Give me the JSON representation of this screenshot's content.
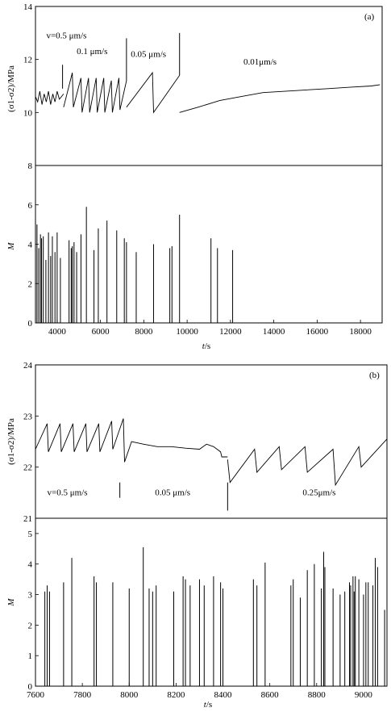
{
  "chart_data": [
    {
      "panel": "(a)",
      "type": "line",
      "x_range": [
        3000,
        19000
      ],
      "x_ticks": [
        4000,
        6000,
        8000,
        10000,
        12000,
        14000,
        16000,
        18000
      ],
      "xlabel_italic": "t",
      "xlabel_unit": "/s",
      "stress": {
        "ylabel": "(σ1-σ2)/MPa",
        "ylim": [
          8,
          14
        ],
        "y_ticks": [
          8,
          10,
          12,
          14
        ],
        "annotations": [
          {
            "text": "v=0.5 μm/s",
            "x": 3500,
            "y": 12.8
          },
          {
            "text": "0.1 μm/s",
            "x": 4900,
            "y": 12.2
          },
          {
            "text": "0.05 μm/s",
            "x": 7400,
            "y": 12.1
          },
          {
            "text": "0.01μm/s",
            "x": 12600,
            "y": 11.8
          }
        ],
        "velocity_markers": [
          4250,
          7200,
          9650
        ],
        "series": [
          {
            "x": [
              3000,
              3100,
              3200,
              3300,
              3400,
              3500,
              3600,
              3700,
              3800,
              3900,
              4000,
              4100,
              4200,
              4300
            ],
            "y": [
              10.6,
              10.4,
              10.8,
              10.3,
              10.7,
              10.4,
              10.8,
              10.3,
              10.7,
              10.4,
              10.8,
              10.5,
              10.6,
              10.7
            ]
          },
          {
            "x": [
              4300,
              4700,
              4750,
              5100,
              5150,
              5450,
              5500,
              5800,
              5850,
              6150,
              6200,
              6500,
              6550,
              6850,
              6900,
              7200
            ],
            "y": [
              10.2,
              11.5,
              10.2,
              11.3,
              10.0,
              11.3,
              10.0,
              11.3,
              10.0,
              11.3,
              10.0,
              11.2,
              10.0,
              11.3,
              10.1,
              11.2
            ]
          },
          {
            "x": [
              7200,
              8400,
              8450,
              9650
            ],
            "y": [
              10.2,
              11.5,
              10.0,
              11.4
            ]
          },
          {
            "x": [
              9650,
              10500,
              11500,
              12500,
              13500,
              14500,
              15500,
              16500,
              17500,
              18500,
              18900
            ],
            "y": [
              10.0,
              10.2,
              10.45,
              10.6,
              10.75,
              10.8,
              10.85,
              10.9,
              10.95,
              11.0,
              11.05
            ]
          }
        ],
        "spikes": [
          {
            "x": 7200,
            "y0": 11.2,
            "y1": 12.8
          },
          {
            "x": 9650,
            "y0": 11.4,
            "y1": 13.0
          },
          {
            "x": 4250,
            "y0": 10.9,
            "y1": 11.8
          }
        ]
      },
      "magnitude": {
        "ylabel": "M",
        "ylim": [
          0,
          8
        ],
        "y_ticks": [
          0,
          2,
          4,
          6
        ],
        "stems": {
          "x": [
            3070,
            3150,
            3230,
            3280,
            3360,
            3480,
            3600,
            3700,
            3780,
            3900,
            4000,
            4150,
            4550,
            4650,
            4700,
            4780,
            4900,
            5100,
            5350,
            5700,
            5900,
            6300,
            6750,
            7100,
            7200,
            7650,
            8450,
            9200,
            9300,
            9650,
            11100,
            11400,
            12100
          ],
          "values": [
            5.0,
            3.8,
            4.5,
            4.3,
            4.4,
            3.2,
            4.6,
            3.4,
            4.4,
            3.6,
            4.6,
            3.3,
            4.2,
            3.8,
            3.9,
            4.1,
            3.6,
            4.5,
            5.9,
            3.7,
            4.8,
            5.2,
            4.7,
            4.3,
            4.1,
            3.6,
            4.0,
            3.8,
            3.9,
            5.5,
            4.3,
            3.8,
            3.7
          ]
        }
      }
    },
    {
      "panel": "(b)",
      "type": "line",
      "x_range": [
        7600,
        9100
      ],
      "x_ticks": [
        7600,
        7800,
        8000,
        8200,
        8400,
        8600,
        8800,
        9000
      ],
      "xlabel_italic": "t",
      "xlabel_unit": "/s",
      "stress": {
        "ylabel": "(σ1-σ2)/MPa",
        "ylim": [
          21,
          24
        ],
        "y_ticks": [
          21,
          22,
          23,
          24
        ],
        "annotations": [
          {
            "text": "v=0.5 μm/s",
            "x": 7650,
            "y": 21.45
          },
          {
            "text": "0.05 μm/s",
            "x": 8110,
            "y": 21.45
          },
          {
            "text": "0.25μm/s",
            "x": 8740,
            "y": 21.45
          }
        ],
        "velocity_markers": [
          7960,
          8420
        ],
        "series": [
          {
            "x": [
              7600,
              7650,
              7655,
              7705,
              7710,
              7760,
              7765,
              7815,
              7820,
              7870,
              7875,
              7925,
              7930,
              7975,
              7980
            ],
            "y": [
              22.35,
              22.85,
              22.3,
              22.85,
              22.3,
              22.85,
              22.3,
              22.85,
              22.3,
              22.85,
              22.3,
              22.9,
              22.35,
              22.95,
              22.1
            ]
          },
          {
            "x": [
              7980,
              8010,
              8060,
              8120,
              8180,
              8240,
              8300,
              8330,
              8360,
              8390,
              8395,
              8420
            ],
            "y": [
              22.1,
              22.5,
              22.45,
              22.4,
              22.4,
              22.37,
              22.35,
              22.45,
              22.4,
              22.3,
              22.2,
              22.2
            ]
          },
          {
            "x": [
              8420,
              8430,
              8535,
              8545,
              8640,
              8650,
              8750,
              8760,
              8870,
              8880,
              8980,
              8990,
              9100
            ],
            "y": [
              22.15,
              21.7,
              22.35,
              21.9,
              22.4,
              21.95,
              22.4,
              21.9,
              22.35,
              21.65,
              22.4,
              22.0,
              22.55
            ]
          }
        ],
        "spikes": [
          {
            "x": 7960,
            "y0": 21.4,
            "y1": 21.7
          },
          {
            "x": 8420,
            "y0": 21.15,
            "y1": 21.7
          }
        ]
      },
      "magnitude": {
        "ylabel": "M",
        "ylim": [
          0,
          5.5
        ],
        "y_ticks": [
          0,
          1,
          2,
          3,
          4,
          5
        ],
        "stems": {
          "x": [
            7640,
            7650,
            7660,
            7720,
            7755,
            7850,
            7860,
            7930,
            8000,
            8060,
            8085,
            8100,
            8115,
            8190,
            8230,
            8240,
            8260,
            8300,
            8320,
            8360,
            8390,
            8400,
            8530,
            8545,
            8580,
            8690,
            8700,
            8730,
            8760,
            8790,
            8820,
            8830,
            8835,
            8870,
            8900,
            8920,
            8940,
            8945,
            8955,
            8960,
            8965,
            8980,
            9000,
            9010,
            9020,
            9040,
            9050,
            9060,
            9090,
            9100
          ],
          "values": [
            3.1,
            3.3,
            3.1,
            3.4,
            4.2,
            3.6,
            3.4,
            3.4,
            3.2,
            4.55,
            3.2,
            3.1,
            3.3,
            3.1,
            3.6,
            3.5,
            3.3,
            3.5,
            3.3,
            3.6,
            3.4,
            3.2,
            3.5,
            3.3,
            4.05,
            3.3,
            3.5,
            2.9,
            3.8,
            4.0,
            3.2,
            4.4,
            3.9,
            3.2,
            3.0,
            3.1,
            3.4,
            3.3,
            3.6,
            3.1,
            3.6,
            3.5,
            3.0,
            3.4,
            3.4,
            3.3,
            4.2,
            3.9,
            2.5,
            3.5
          ]
        }
      }
    }
  ]
}
